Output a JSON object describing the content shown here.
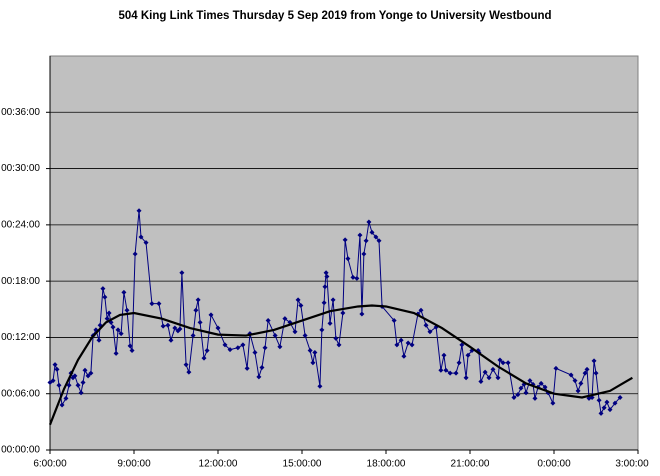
{
  "chart_data": {
    "type": "line",
    "title": "504 King Link Times Thursday 5 Sep 2019 from Yonge to University Westbound",
    "xlim": [
      6,
      27
    ],
    "xticks": [
      {
        "value": 6,
        "label": "6:00:00"
      },
      {
        "value": 9,
        "label": "9:00:00"
      },
      {
        "value": 12,
        "label": "12:00:00"
      },
      {
        "value": 15,
        "label": "15:00:00"
      },
      {
        "value": 18,
        "label": "18:00:00"
      },
      {
        "value": 21,
        "label": "21:00:00"
      },
      {
        "value": 24,
        "label": "0:00:00"
      },
      {
        "value": 27,
        "label": "3:00:00"
      }
    ],
    "ylim": [
      0,
      42
    ],
    "yticks": [
      {
        "value": 0,
        "label": "00:00:00"
      },
      {
        "value": 6,
        "label": "00:06:00"
      },
      {
        "value": 12,
        "label": "00:12:00"
      },
      {
        "value": 18,
        "label": "00:18:00"
      },
      {
        "value": 24,
        "label": "00:24:00"
      },
      {
        "value": 30,
        "label": "00:30:00"
      },
      {
        "value": 36,
        "label": "00:36:00"
      }
    ],
    "grid": true,
    "background": "#c0c0c0",
    "series": [
      {
        "color": "#000080",
        "markers": true,
        "x": [
          6.0,
          6.11,
          6.18,
          6.25,
          6.32,
          6.43,
          6.57,
          6.68,
          6.75,
          6.82,
          6.89,
          7.0,
          7.11,
          7.18,
          7.25,
          7.36,
          7.46,
          7.54,
          7.64,
          7.75,
          7.79,
          7.89,
          7.96,
          8.04,
          8.11,
          8.18,
          8.25,
          8.36,
          8.43,
          8.54,
          8.64,
          8.75,
          8.86,
          8.93,
          9.04,
          9.18,
          9.25,
          9.43,
          9.64,
          9.89,
          10.04,
          10.21,
          10.32,
          10.46,
          10.57,
          10.64,
          10.71,
          10.86,
          10.96,
          11.11,
          11.21,
          11.29,
          11.36,
          11.5,
          11.61,
          11.75,
          12.0,
          12.25,
          12.43,
          12.71,
          12.89,
          13.04,
          13.14,
          13.32,
          13.46,
          13.57,
          13.68,
          13.79,
          14.04,
          14.21,
          14.39,
          14.57,
          14.75,
          14.86,
          14.96,
          15.11,
          15.29,
          15.39,
          15.46,
          15.64,
          15.71,
          15.79,
          15.82,
          15.86,
          15.89,
          16.0,
          16.11,
          16.21,
          16.32,
          16.46,
          16.54,
          16.64,
          16.82,
          16.96,
          17.07,
          17.14,
          17.21,
          17.29,
          17.39,
          17.5,
          17.64,
          17.75,
          17.86,
          18.29,
          18.39,
          18.54,
          18.64,
          18.79,
          18.93,
          19.14,
          19.25,
          19.43,
          19.57,
          19.79,
          19.96,
          20.07,
          20.14,
          20.29,
          20.5,
          20.61,
          20.71,
          20.86,
          20.93,
          21.07,
          21.29,
          21.32,
          21.39,
          21.54,
          21.68,
          21.82,
          22.0,
          22.07,
          22.18,
          22.36,
          22.57,
          22.71,
          22.82,
          22.93,
          23.0,
          23.14,
          23.25,
          23.32,
          23.43,
          23.54,
          23.68,
          23.79,
          23.96,
          24.07,
          24.61,
          24.75,
          24.86,
          24.96,
          25.11,
          25.18,
          25.25,
          25.36,
          25.43,
          25.5,
          25.61,
          25.68,
          25.79,
          25.89,
          26.0,
          26.18,
          26.36
        ],
        "values": [
          7.2,
          7.4,
          9.1,
          8.6,
          6.9,
          4.8,
          5.5,
          6.9,
          8.2,
          7.7,
          7.9,
          6.9,
          6.1,
          7.2,
          8.5,
          7.9,
          8.2,
          12.2,
          12.8,
          11.7,
          13.3,
          17.2,
          16.3,
          14.0,
          14.6,
          13.6,
          13.1,
          10.3,
          12.8,
          12.4,
          16.8,
          14.9,
          11.1,
          10.6,
          20.9,
          25.5,
          22.7,
          22.1,
          15.6,
          15.6,
          13.2,
          13.3,
          11.7,
          13.0,
          12.7,
          12.9,
          18.9,
          9.1,
          8.3,
          12.2,
          14.9,
          16.0,
          13.6,
          9.8,
          10.6,
          14.4,
          13.0,
          11.2,
          10.7,
          10.9,
          11.2,
          8.7,
          12.4,
          10.4,
          7.8,
          8.8,
          10.9,
          13.8,
          12.2,
          11.0,
          14.0,
          13.6,
          12.6,
          16.0,
          15.4,
          12.2,
          10.6,
          9.3,
          10.4,
          6.8,
          12.8,
          15.7,
          17.4,
          18.9,
          18.5,
          13.5,
          16.0,
          11.9,
          11.2,
          14.6,
          22.4,
          20.4,
          18.4,
          18.3,
          22.9,
          14.5,
          20.9,
          22.3,
          24.3,
          23.2,
          22.7,
          22.3,
          15.3,
          13.8,
          11.2,
          11.7,
          10.0,
          11.4,
          11.2,
          14.5,
          14.9,
          13.3,
          12.6,
          13.1,
          8.5,
          10.1,
          8.5,
          8.2,
          8.2,
          9.3,
          11.2,
          7.7,
          10.1,
          10.6,
          10.6,
          10.4,
          7.3,
          8.3,
          7.7,
          8.6,
          7.7,
          9.6,
          9.3,
          9.3,
          5.6,
          5.9,
          6.6,
          7.0,
          6.1,
          7.4,
          7.0,
          5.5,
          6.7,
          7.1,
          6.7,
          6.1,
          5.0,
          8.7,
          8.0,
          7.4,
          6.3,
          7.1,
          8.2,
          8.6,
          5.5,
          5.6,
          9.5,
          8.2,
          5.3,
          3.9,
          4.5,
          5.1,
          4.3,
          5.0,
          5.6
        ]
      },
      {
        "color": "#000000",
        "markers": false,
        "x": [
          6,
          6.5,
          7,
          7.5,
          8,
          8.5,
          9,
          10,
          11,
          12,
          13,
          14,
          15,
          16,
          17,
          17.5,
          18,
          19,
          20,
          21,
          22,
          23,
          24,
          25,
          26,
          26.8
        ],
        "values": [
          2.7,
          6.5,
          9.6,
          12.0,
          13.6,
          14.4,
          14.6,
          14.0,
          13.0,
          12.3,
          12.2,
          12.8,
          13.8,
          14.8,
          15.3,
          15.4,
          15.3,
          14.6,
          13.0,
          11.0,
          8.9,
          7.1,
          6.0,
          5.6,
          6.3,
          7.7
        ]
      }
    ]
  }
}
